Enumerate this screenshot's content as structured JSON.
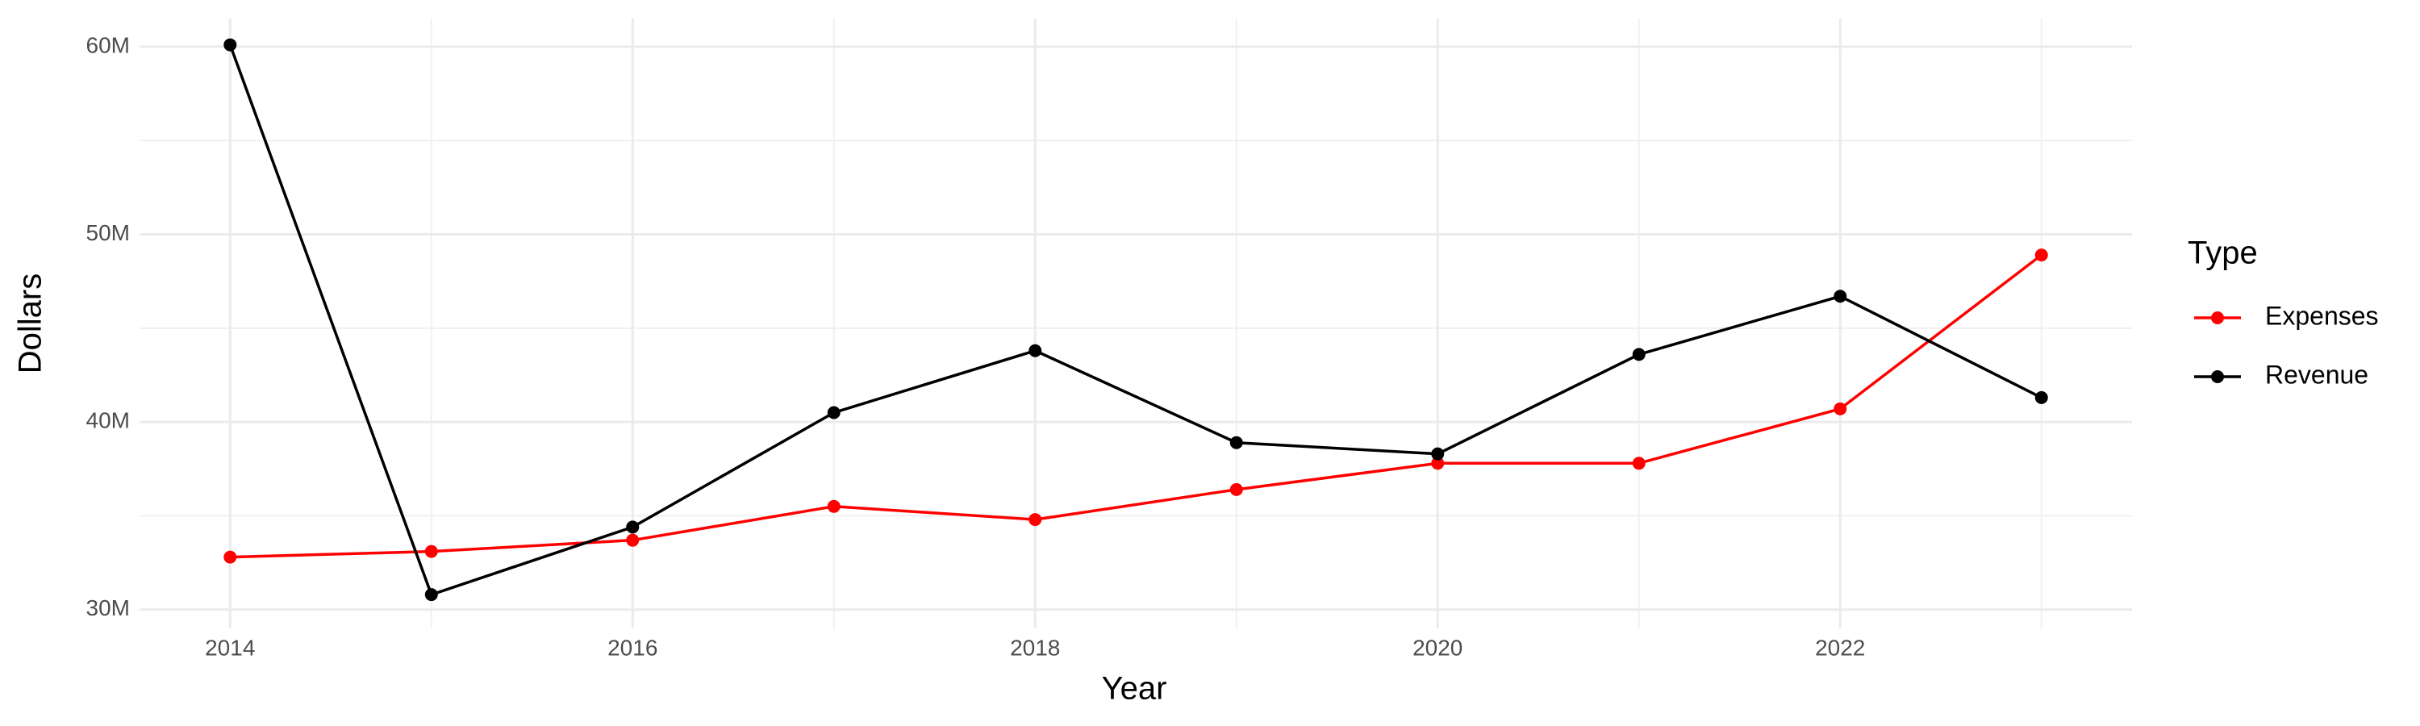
{
  "chart_data": {
    "type": "line",
    "x_label": "Year",
    "y_label": "Dollars",
    "legend_title": "Type",
    "legend_position": "right",
    "grid": true,
    "x": [
      2014,
      2015,
      2016,
      2017,
      2018,
      2019,
      2020,
      2021,
      2022,
      2023
    ],
    "series": [
      {
        "name": "Expenses",
        "color": "#ff0000",
        "values": [
          32800000,
          33100000,
          33700000,
          35500000,
          34800000,
          36400000,
          37800000,
          37800000,
          40700000,
          48900000
        ]
      },
      {
        "name": "Revenue",
        "color": "#000000",
        "values": [
          60100000,
          30800000,
          34400000,
          40500000,
          43800000,
          38900000,
          38300000,
          43600000,
          46700000,
          41300000
        ]
      }
    ],
    "xlim": [
      2013.55,
      2023.45
    ],
    "xticks": [
      2014,
      2016,
      2018,
      2020,
      2022
    ],
    "ylim": [
      29000000,
      61500000
    ],
    "yticks": [
      {
        "value": 30000000,
        "label": "30M"
      },
      {
        "value": 40000000,
        "label": "40M"
      },
      {
        "value": 50000000,
        "label": "50M"
      },
      {
        "value": 60000000,
        "label": "60M"
      }
    ]
  }
}
